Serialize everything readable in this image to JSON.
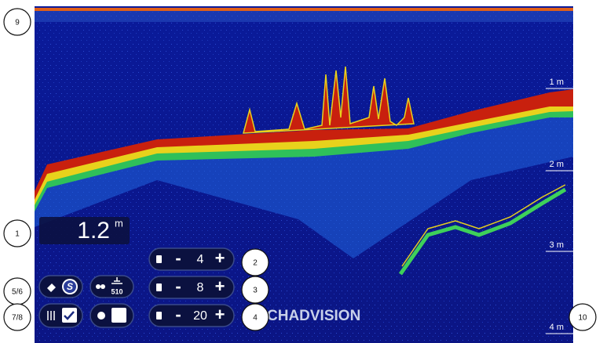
{
  "callouts": [
    "9",
    "1",
    "5/6",
    "7/8",
    "2",
    "3",
    "4",
    "10"
  ],
  "depth_labels": [
    "1 m",
    "2 m",
    "3 m",
    "4 m"
  ],
  "depth_readout": {
    "value": "1.2",
    "unit": "m"
  },
  "controls": [
    {
      "minus": "-",
      "value": "4",
      "plus": "+"
    },
    {
      "minus": "-",
      "value": "8",
      "plus": "+"
    },
    {
      "minus": "-",
      "value": "20",
      "plus": "+"
    }
  ],
  "buttons": {
    "sonar_mode": "S",
    "frequency": "510"
  },
  "logo": "CHADVISION"
}
